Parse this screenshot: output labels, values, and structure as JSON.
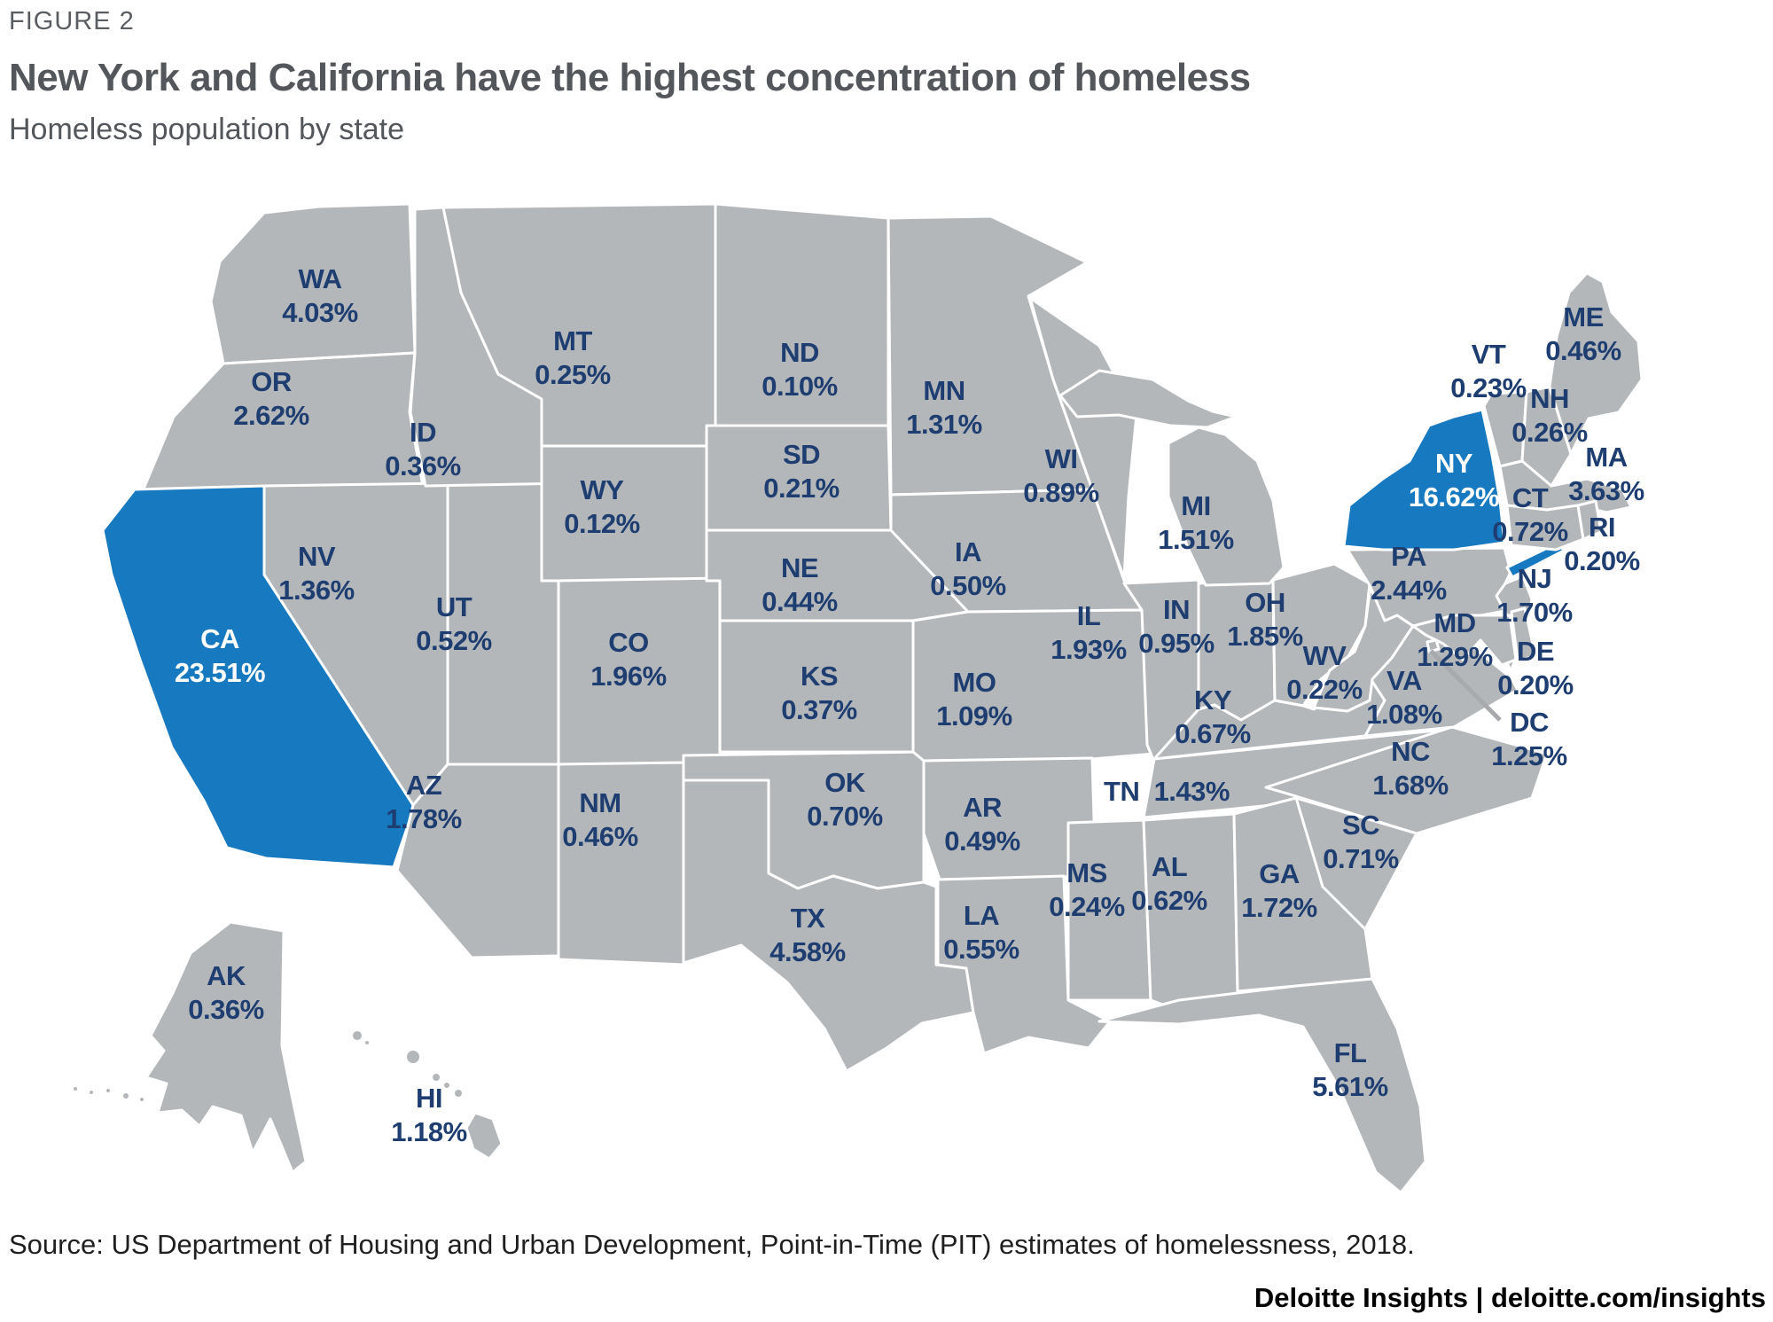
{
  "figure": {
    "eyebrow": "FIGURE 2",
    "title": "New York and California have the highest concentration of homeless",
    "subtitle": "Homeless population by state"
  },
  "source_note": "Source: US Department of Housing and Urban Development, Point-in-Time (PIT) estimates of homelessness, 2018.",
  "footer": {
    "brand": "Deloitte Insights",
    "separator": "|",
    "site": "deloitte.com/insights"
  },
  "colors": {
    "state_fill": "#b4b7b9",
    "highlight_fill": "#1779bf",
    "state_border": "#ffffff",
    "label_text": "#1e3d70",
    "highlight_label_text": "#ffffff",
    "title_text": "#53565a",
    "source_text": "#1f1f1f",
    "leader_line": "#a7a9ac"
  },
  "chart_data": {
    "type": "choropleth_map",
    "region": "United States",
    "title": "Homeless population by state",
    "unit": "percent share of US homeless population",
    "states": [
      {
        "code": "WA",
        "value": "4.03%",
        "highlighted": false
      },
      {
        "code": "OR",
        "value": "2.62%",
        "highlighted": false
      },
      {
        "code": "CA",
        "value": "23.51%",
        "highlighted": true
      },
      {
        "code": "NV",
        "value": "1.36%",
        "highlighted": false
      },
      {
        "code": "ID",
        "value": "0.36%",
        "highlighted": false
      },
      {
        "code": "MT",
        "value": "0.25%",
        "highlighted": false
      },
      {
        "code": "WY",
        "value": "0.12%",
        "highlighted": false
      },
      {
        "code": "UT",
        "value": "0.52%",
        "highlighted": false
      },
      {
        "code": "AZ",
        "value": "1.78%",
        "highlighted": false
      },
      {
        "code": "CO",
        "value": "1.96%",
        "highlighted": false
      },
      {
        "code": "NM",
        "value": "0.46%",
        "highlighted": false
      },
      {
        "code": "ND",
        "value": "0.10%",
        "highlighted": false
      },
      {
        "code": "SD",
        "value": "0.21%",
        "highlighted": false
      },
      {
        "code": "NE",
        "value": "0.44%",
        "highlighted": false
      },
      {
        "code": "KS",
        "value": "0.37%",
        "highlighted": false
      },
      {
        "code": "OK",
        "value": "0.70%",
        "highlighted": false
      },
      {
        "code": "TX",
        "value": "4.58%",
        "highlighted": false
      },
      {
        "code": "MN",
        "value": "1.31%",
        "highlighted": false
      },
      {
        "code": "IA",
        "value": "0.50%",
        "highlighted": false
      },
      {
        "code": "MO",
        "value": "1.09%",
        "highlighted": false
      },
      {
        "code": "AR",
        "value": "0.49%",
        "highlighted": false
      },
      {
        "code": "LA",
        "value": "0.55%",
        "highlighted": false
      },
      {
        "code": "WI",
        "value": "0.89%",
        "highlighted": false
      },
      {
        "code": "IL",
        "value": "1.93%",
        "highlighted": false
      },
      {
        "code": "IN",
        "value": "0.95%",
        "highlighted": false
      },
      {
        "code": "MI",
        "value": "1.51%",
        "highlighted": false
      },
      {
        "code": "OH",
        "value": "1.85%",
        "highlighted": false
      },
      {
        "code": "KY",
        "value": "0.67%",
        "highlighted": false
      },
      {
        "code": "TN",
        "value": "1.43%",
        "highlighted": false
      },
      {
        "code": "MS",
        "value": "0.24%",
        "highlighted": false
      },
      {
        "code": "AL",
        "value": "0.62%",
        "highlighted": false
      },
      {
        "code": "GA",
        "value": "1.72%",
        "highlighted": false
      },
      {
        "code": "FL",
        "value": "5.61%",
        "highlighted": false
      },
      {
        "code": "SC",
        "value": "0.71%",
        "highlighted": false
      },
      {
        "code": "NC",
        "value": "1.68%",
        "highlighted": false
      },
      {
        "code": "VA",
        "value": "1.08%",
        "highlighted": false
      },
      {
        "code": "WV",
        "value": "0.22%",
        "highlighted": false
      },
      {
        "code": "PA",
        "value": "2.44%",
        "highlighted": false
      },
      {
        "code": "NY",
        "value": "16.62%",
        "highlighted": true
      },
      {
        "code": "NJ",
        "value": "1.70%",
        "highlighted": false
      },
      {
        "code": "MD",
        "value": "1.29%",
        "highlighted": false
      },
      {
        "code": "DE",
        "value": "0.20%",
        "highlighted": false
      },
      {
        "code": "DC",
        "value": "1.25%",
        "highlighted": false
      },
      {
        "code": "VT",
        "value": "0.23%",
        "highlighted": false
      },
      {
        "code": "NH",
        "value": "0.26%",
        "highlighted": false
      },
      {
        "code": "ME",
        "value": "0.46%",
        "highlighted": false
      },
      {
        "code": "MA",
        "value": "3.63%",
        "highlighted": false
      },
      {
        "code": "CT",
        "value": "0.72%",
        "highlighted": false
      },
      {
        "code": "RI",
        "value": "0.20%",
        "highlighted": false
      },
      {
        "code": "AK",
        "value": "0.36%",
        "highlighted": false
      },
      {
        "code": "HI",
        "value": "1.18%",
        "highlighted": false
      }
    ]
  }
}
